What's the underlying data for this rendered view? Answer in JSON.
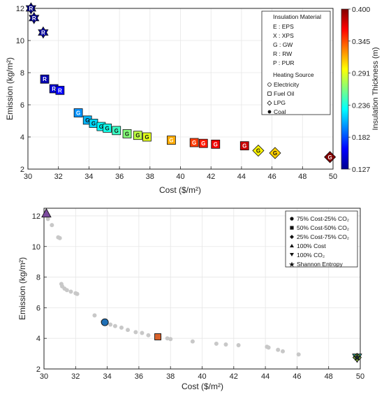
{
  "chart_data": [
    {
      "type": "scatter",
      "xlabel": "Cost ($/m²)",
      "ylabel": "Emission (kg/m²)",
      "xlim": [
        30,
        50
      ],
      "ylim": [
        2,
        12
      ],
      "xticks": [
        30,
        32,
        34,
        36,
        38,
        40,
        42,
        44,
        46,
        48,
        50
      ],
      "yticks": [
        2,
        4,
        6,
        8,
        10,
        12
      ],
      "grid": true,
      "legend": {
        "placement": "top-right",
        "material_title": "Insulation Material",
        "materials": [
          "E : EPS",
          "X : XPS",
          "G : GW",
          "R : RW",
          "P : PUR"
        ],
        "source_title": "Heating Source",
        "sources": [
          {
            "symbol": "○",
            "label": "Electricity"
          },
          {
            "symbol": "□",
            "label": "Fuel Oil"
          },
          {
            "symbol": "◇",
            "label": "LPG"
          },
          {
            "symbol": "☆",
            "label": "Coal"
          }
        ]
      },
      "colorbar": {
        "label": "Insulation Thickness (m)",
        "min": 0.127,
        "max": 0.4,
        "ticks": [
          "0.400",
          "0.345",
          "0.291",
          "0.236",
          "0.182",
          "0.127"
        ]
      },
      "points": [
        {
          "x": 30.2,
          "y": 12.0,
          "marker": "star",
          "label": "R",
          "t": 0.127
        },
        {
          "x": 30.4,
          "y": 11.4,
          "marker": "star",
          "label": "R",
          "t": 0.13
        },
        {
          "x": 31.0,
          "y": 10.5,
          "marker": "star",
          "label": "R",
          "t": 0.135
        },
        {
          "x": 31.1,
          "y": 7.6,
          "marker": "square",
          "label": "R",
          "t": 0.14
        },
        {
          "x": 31.7,
          "y": 7.0,
          "marker": "square",
          "label": "R",
          "t": 0.15
        },
        {
          "x": 32.1,
          "y": 6.9,
          "marker": "square",
          "label": "R",
          "t": 0.16
        },
        {
          "x": 33.3,
          "y": 5.5,
          "marker": "square",
          "label": "G",
          "t": 0.2
        },
        {
          "x": 33.9,
          "y": 5.05,
          "marker": "square",
          "label": "G",
          "t": 0.21
        },
        {
          "x": 34.3,
          "y": 4.85,
          "marker": "square",
          "label": "G",
          "t": 0.22
        },
        {
          "x": 34.8,
          "y": 4.65,
          "marker": "square",
          "label": "G",
          "t": 0.23
        },
        {
          "x": 35.2,
          "y": 4.55,
          "marker": "square",
          "label": "G",
          "t": 0.235
        },
        {
          "x": 35.8,
          "y": 4.4,
          "marker": "square",
          "label": "G",
          "t": 0.245
        },
        {
          "x": 36.5,
          "y": 4.2,
          "marker": "square",
          "label": "G",
          "t": 0.265
        },
        {
          "x": 37.2,
          "y": 4.1,
          "marker": "square",
          "label": "G",
          "t": 0.28
        },
        {
          "x": 37.8,
          "y": 4.0,
          "marker": "square",
          "label": "G",
          "t": 0.29
        },
        {
          "x": 39.4,
          "y": 3.8,
          "marker": "square",
          "label": "G",
          "t": 0.32
        },
        {
          "x": 40.9,
          "y": 3.65,
          "marker": "square",
          "label": "G",
          "t": 0.35
        },
        {
          "x": 41.5,
          "y": 3.6,
          "marker": "square",
          "label": "G",
          "t": 0.36
        },
        {
          "x": 42.3,
          "y": 3.55,
          "marker": "square",
          "label": "G",
          "t": 0.37
        },
        {
          "x": 44.2,
          "y": 3.45,
          "marker": "square",
          "label": "G",
          "t": 0.38
        },
        {
          "x": 45.1,
          "y": 3.15,
          "marker": "diamond",
          "label": "G",
          "t": 0.3
        },
        {
          "x": 46.2,
          "y": 3.0,
          "marker": "diamond",
          "label": "G",
          "t": 0.31
        },
        {
          "x": 49.8,
          "y": 2.75,
          "marker": "diamond",
          "label": "G",
          "t": 0.4
        }
      ]
    },
    {
      "type": "scatter",
      "xlabel": "Cost ($/m²)",
      "ylabel": "Emission (kg/m²)",
      "xlim": [
        30,
        50
      ],
      "ylim": [
        2,
        12.5
      ],
      "xticks": [
        30,
        32,
        34,
        36,
        38,
        40,
        42,
        44,
        46,
        48,
        50
      ],
      "yticks": [
        2,
        4,
        6,
        8,
        10,
        12
      ],
      "grid": true,
      "legend": {
        "placement": "top-right",
        "entries": [
          {
            "symbol": "●",
            "label": "75% Cost-25% CO₂"
          },
          {
            "symbol": "■",
            "label": "50% Cost-50% CO₂"
          },
          {
            "symbol": "◆",
            "label": "25% Cost-75% CO₂"
          },
          {
            "symbol": "▲",
            "label": "100% Cost"
          },
          {
            "symbol": "▼",
            "label": "100% CO₂"
          },
          {
            "symbol": "★",
            "label": "Shannon Entropy"
          }
        ]
      },
      "gray_points": [
        [
          30.2,
          12.0
        ],
        [
          30.25,
          11.8
        ],
        [
          30.5,
          11.4
        ],
        [
          30.9,
          10.6
        ],
        [
          31.0,
          10.55
        ],
        [
          31.1,
          7.55
        ],
        [
          31.15,
          7.4
        ],
        [
          31.3,
          7.25
        ],
        [
          31.45,
          7.15
        ],
        [
          31.7,
          7.05
        ],
        [
          32.0,
          6.95
        ],
        [
          32.1,
          6.9
        ],
        [
          33.2,
          5.5
        ],
        [
          33.7,
          5.1
        ],
        [
          34.2,
          4.9
        ],
        [
          34.5,
          4.8
        ],
        [
          34.9,
          4.7
        ],
        [
          35.3,
          4.55
        ],
        [
          35.8,
          4.4
        ],
        [
          36.2,
          4.35
        ],
        [
          36.6,
          4.2
        ],
        [
          37.3,
          4.1
        ],
        [
          37.8,
          4.0
        ],
        [
          38.0,
          3.95
        ],
        [
          39.4,
          3.8
        ],
        [
          40.9,
          3.65
        ],
        [
          41.5,
          3.6
        ],
        [
          42.3,
          3.55
        ],
        [
          44.1,
          3.45
        ],
        [
          44.2,
          3.4
        ],
        [
          44.8,
          3.25
        ],
        [
          45.1,
          3.15
        ],
        [
          46.1,
          2.95
        ],
        [
          49.8,
          2.75
        ]
      ],
      "highlights": [
        {
          "name": "100% Cost",
          "marker": "triangle-up",
          "x": 30.15,
          "y": 12.15,
          "color": "#7b4a9e"
        },
        {
          "name": "75% Cost-25% CO₂",
          "marker": "circle",
          "x": 33.85,
          "y": 5.05,
          "color": "#1f6fb5"
        },
        {
          "name": "50% Cost-50% CO₂",
          "marker": "square",
          "x": 37.2,
          "y": 4.1,
          "color": "#d9622b"
        },
        {
          "name": "100% CO₂",
          "marker": "triangle-down",
          "x": 49.8,
          "y": 2.75,
          "color": "#2a9d8f"
        },
        {
          "name": "25% Cost-75% CO₂",
          "marker": "diamond",
          "x": 49.8,
          "y": 2.75,
          "color": "#8fbf3f"
        },
        {
          "name": "Shannon Entropy",
          "marker": "star",
          "x": 49.8,
          "y": 2.75,
          "color": "#1a2a3a"
        }
      ]
    }
  ]
}
